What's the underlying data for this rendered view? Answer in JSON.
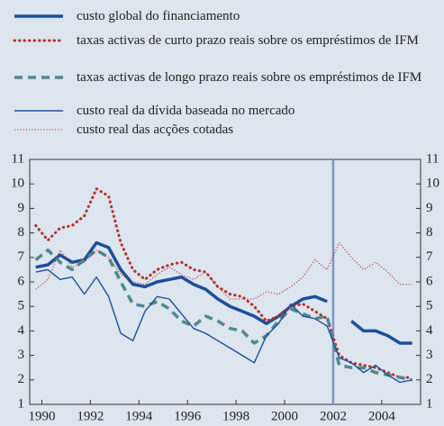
{
  "chart_data": {
    "type": "line",
    "x": [
      1989.75,
      1990.25,
      1990.75,
      1991.25,
      1991.75,
      1992.25,
      1992.75,
      1993.25,
      1993.75,
      1994.25,
      1994.75,
      1995.25,
      1995.75,
      1996.25,
      1996.75,
      1997.25,
      1997.75,
      1998.25,
      1998.75,
      1999.25,
      1999.75,
      2000.25,
      2000.75,
      2001.25,
      2001.75,
      2002.25,
      2002.75,
      2003.25,
      2003.75,
      2004.25,
      2004.75,
      2005.25
    ],
    "series": [
      {
        "name": "custo global do financiamento",
        "color": "#1c4f9c",
        "style": "thick-solid",
        "values": [
          6.6,
          6.7,
          7.1,
          6.8,
          6.9,
          7.6,
          7.4,
          6.5,
          5.9,
          5.8,
          6.0,
          6.1,
          6.2,
          5.9,
          5.7,
          5.3,
          5.0,
          4.8,
          4.6,
          4.3,
          4.6,
          5.0,
          5.3,
          5.4,
          5.2,
          null,
          4.4,
          4.0,
          4.0,
          3.8,
          3.5,
          3.5
        ]
      },
      {
        "name": "taxas activas de curto prazo reais sobre os empréstimos de IFM",
        "color": "#b3322b",
        "style": "thick-dotted",
        "values": [
          8.3,
          7.7,
          8.2,
          8.3,
          8.7,
          9.8,
          9.5,
          7.6,
          6.5,
          6.1,
          6.5,
          6.7,
          6.8,
          6.5,
          6.4,
          5.8,
          5.5,
          5.4,
          5.0,
          4.4,
          4.6,
          5.0,
          5.1,
          4.8,
          4.5,
          3.0,
          2.7,
          2.6,
          2.5,
          2.3,
          2.1,
          2.1
        ]
      },
      {
        "name": "taxas activas de longo prazo reais sobre os empréstimos de IFM",
        "color": "#4f8a8e",
        "style": "thick-dashed",
        "values": [
          6.9,
          7.3,
          6.8,
          6.5,
          6.9,
          7.3,
          7.0,
          6.0,
          5.1,
          5.0,
          5.2,
          4.9,
          4.4,
          4.2,
          4.6,
          4.4,
          4.1,
          4.0,
          3.5,
          3.8,
          4.4,
          4.9,
          4.7,
          4.5,
          4.6,
          2.6,
          2.5,
          2.5,
          2.3,
          2.2,
          2.1,
          2.0
        ]
      },
      {
        "name": "custo real da dívida baseada no mercado",
        "color": "#1c4f9c",
        "style": "solid",
        "values": [
          6.4,
          6.5,
          6.1,
          6.2,
          5.5,
          6.2,
          5.4,
          3.9,
          3.6,
          4.8,
          5.4,
          5.3,
          4.7,
          4.1,
          3.9,
          3.6,
          3.3,
          3.0,
          2.7,
          3.8,
          4.3,
          5.1,
          4.6,
          4.5,
          4.2,
          2.9,
          2.7,
          2.3,
          2.6,
          2.2,
          1.9,
          2.0
        ]
      },
      {
        "name": "custo real das acções cotadas",
        "color": "#b3322b",
        "style": "dotted",
        "values": [
          5.7,
          6.1,
          7.3,
          6.6,
          6.8,
          7.3,
          7.0,
          6.3,
          6.0,
          5.9,
          6.3,
          6.6,
          6.3,
          6.1,
          6.4,
          5.8,
          5.3,
          5.3,
          5.3,
          5.6,
          5.5,
          5.8,
          6.2,
          6.9,
          6.5,
          7.6,
          7.0,
          6.5,
          6.8,
          6.4,
          5.9,
          5.9
        ]
      }
    ],
    "xlim": [
      1989.5,
      2005.6
    ],
    "xticks": [
      1990,
      1992,
      1994,
      1996,
      1998,
      2000,
      2002,
      2004
    ],
    "ylim": [
      1,
      11
    ],
    "yticks": [
      1,
      2,
      3,
      4,
      5,
      6,
      7,
      8,
      9,
      10,
      11
    ]
  }
}
